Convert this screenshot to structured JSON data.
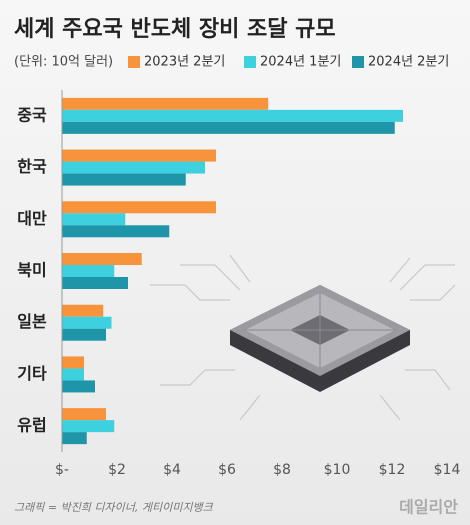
{
  "chart_data": {
    "type": "hbar",
    "title": "세계 주요국 반도체 장비 조달 규모",
    "subtitle": "(단위: 10억 달러)",
    "source": "그래픽 = 박진희 디자이너, 게티이미지뱅크",
    "watermark": "데일리안",
    "categories": [
      "중국",
      "한국",
      "대만",
      "북미",
      "일본",
      "기타",
      "유럽"
    ],
    "series": [
      {
        "name": "2023년 2분기",
        "color": "#f7933a",
        "values": [
          7.5,
          5.6,
          5.6,
          2.9,
          1.5,
          0.8,
          1.6
        ]
      },
      {
        "name": "2024년 1분기",
        "color": "#3dd0df",
        "values": [
          12.4,
          5.2,
          2.3,
          1.9,
          1.8,
          0.8,
          1.9
        ]
      },
      {
        "name": "2024년 2분기",
        "color": "#1e95a8",
        "values": [
          12.1,
          4.5,
          3.9,
          2.4,
          1.6,
          1.2,
          0.9
        ]
      }
    ],
    "xlim": [
      0,
      14
    ],
    "xticks": [
      {
        "value": 0,
        "label": "$-"
      },
      {
        "value": 2,
        "label": "$2"
      },
      {
        "value": 4,
        "label": "$4"
      },
      {
        "value": 6,
        "label": "$6"
      },
      {
        "value": 8,
        "label": "$8"
      },
      {
        "value": 10,
        "label": "$10"
      },
      {
        "value": 12,
        "label": "$12"
      },
      {
        "value": 14,
        "label": "$14"
      }
    ],
    "grid": false
  }
}
